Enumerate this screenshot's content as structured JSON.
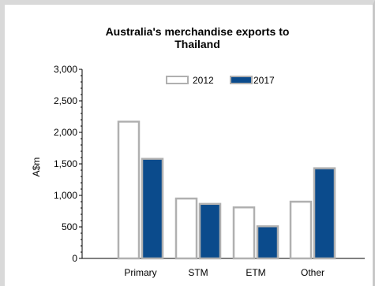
{
  "chart_data": {
    "type": "bar",
    "title_line1": "Australia's merchandise exports to",
    "title_line2": "Thailand",
    "ylabel": "A$m",
    "xlabel": "",
    "categories": [
      "Primary",
      "STM",
      "ETM",
      "Other"
    ],
    "series": [
      {
        "name": "2012",
        "values": [
          2170,
          950,
          810,
          900
        ],
        "color": "#ffffff",
        "stroke": "#b0b0b0"
      },
      {
        "name": "2017",
        "values": [
          1580,
          865,
          510,
          1430
        ],
        "color": "#0b4b8c",
        "stroke": "#b0b0b0"
      }
    ],
    "ylim": [
      0,
      3000
    ],
    "yticks": [
      0,
      500,
      1000,
      1500,
      2000,
      2500,
      3000
    ],
    "ytick_labels": [
      "0",
      "500",
      "1,000",
      "1,500",
      "2,000",
      "2,500",
      "3,000"
    ],
    "grid": false,
    "legend_position": "top-center"
  }
}
